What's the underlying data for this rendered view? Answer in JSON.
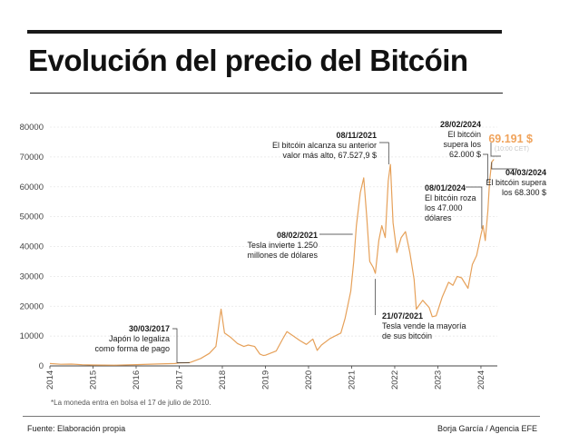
{
  "header": {
    "title": "Evolución del precio del Bitcóin"
  },
  "footnote": "*La moneda entra en bolsa el 17 de julio de 2010.",
  "footer": {
    "source": "Fuente: Elaboración propia",
    "credit": "Borja García / Agencia EFE"
  },
  "colors": {
    "line": "#e6a15a",
    "highlight": "#f0a35b",
    "highlight_note": "#c9c9c9",
    "text": "#1a1a1a",
    "leader": "#333333"
  },
  "chart_data": {
    "type": "line",
    "title": "Evolución del precio del Bitcóin",
    "xlabel": "",
    "ylabel": "",
    "ylim": [
      0,
      80000
    ],
    "xlim": [
      2014.0,
      2024.38
    ],
    "y_ticks": [
      0,
      10000,
      20000,
      30000,
      40000,
      50000,
      60000,
      70000,
      80000
    ],
    "x_ticks": [
      2014,
      2015,
      2016,
      2017,
      2018,
      2019,
      2020,
      2021,
      2022,
      2023,
      2024
    ],
    "grid": true,
    "series": [
      {
        "x": [
          2014.0,
          2014.25,
          2014.5,
          2014.75,
          2015.0,
          2015.5,
          2016.0,
          2016.5,
          2016.9,
          2017.0,
          2017.24,
          2017.5,
          2017.7,
          2017.85,
          2017.95,
          2017.97,
          2018.05,
          2018.2,
          2018.35,
          2018.5,
          2018.6,
          2018.75,
          2018.87,
          2018.95,
          2019.0,
          2019.25,
          2019.4,
          2019.5,
          2019.65,
          2019.8,
          2019.95,
          2020.1,
          2020.2,
          2020.3,
          2020.5,
          2020.75,
          2020.85,
          2020.98,
          2021.05,
          2021.11,
          2021.2,
          2021.28,
          2021.35,
          2021.42,
          2021.5,
          2021.55,
          2021.63,
          2021.7,
          2021.78,
          2021.85,
          2021.9,
          2021.96,
          2022.05,
          2022.15,
          2022.25,
          2022.35,
          2022.45,
          2022.5,
          2022.65,
          2022.8,
          2022.87,
          2022.96,
          2023.1,
          2023.25,
          2023.35,
          2023.45,
          2023.55,
          2023.7,
          2023.8,
          2023.9,
          2024.0,
          2024.05,
          2024.1,
          2024.16,
          2024.2,
          2024.25,
          2024.3
        ],
        "y": [
          800,
          550,
          600,
          400,
          300,
          250,
          420,
          650,
          780,
          1000,
          1100,
          2500,
          4200,
          6500,
          17000,
          19000,
          11000,
          9500,
          7500,
          6500,
          7000,
          6500,
          4000,
          3500,
          3600,
          5000,
          9000,
          11500,
          10000,
          8500,
          7200,
          9000,
          5200,
          7000,
          9200,
          11000,
          16000,
          25000,
          35000,
          47000,
          58000,
          63000,
          50000,
          35000,
          33000,
          31000,
          42000,
          47000,
          43000,
          62000,
          67500,
          48000,
          38000,
          43000,
          45000,
          38000,
          29000,
          19000,
          22000,
          19500,
          16500,
          16800,
          23000,
          28000,
          27000,
          30000,
          29500,
          26000,
          34000,
          37000,
          44000,
          47000,
          42000,
          52000,
          62000,
          68300,
          69191
        ]
      }
    ],
    "highlight_value": "69.191 $",
    "highlight_note": "(10:00 CET)",
    "annotations": [
      {
        "id": "a2017",
        "x": 2017.24,
        "y": 1100,
        "date": "30/03/2017",
        "lines": [
          "Japón lo legaliza",
          "como forma de pago"
        ]
      },
      {
        "id": "a2021feb",
        "x": 2021.11,
        "y": 47000,
        "date": "08/02/2021",
        "lines": [
          "Tesla invierte 1.250",
          "millones de dólares"
        ]
      },
      {
        "id": "a2021nov",
        "x": 2021.86,
        "y": 67528,
        "date": "08/11/2021",
        "lines": [
          "El bitcóin alcanza su anterior",
          "valor más alto, 67.527,9 $"
        ]
      },
      {
        "id": "a2021jul",
        "x": 2021.55,
        "y": 31000,
        "date": "21/07/2021",
        "lines": [
          "Tesla vende la mayoría",
          "de sus bitcóin"
        ]
      },
      {
        "id": "a2024jan",
        "x": 2024.02,
        "y": 46000,
        "date": "08/01/2024",
        "lines": [
          "El bitcóin roza",
          "los 47.000",
          "dólares"
        ]
      },
      {
        "id": "a2024feb",
        "x": 2024.16,
        "y": 62000,
        "date": "28/02/2024",
        "lines": [
          "El bitcóin",
          "supera los",
          "62.000 $"
        ]
      },
      {
        "id": "a2024mar",
        "x": 2024.25,
        "y": 68300,
        "date": "04/03/2024",
        "lines": [
          "El bitcóin supera",
          "los 68.300 $"
        ]
      }
    ]
  }
}
